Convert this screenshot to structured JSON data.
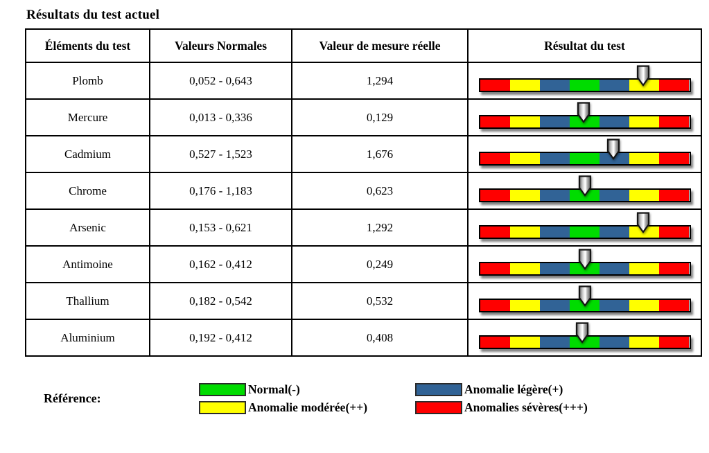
{
  "title": "Résultats du test actuel",
  "table": {
    "headers": [
      "Éléments du test",
      "Valeurs Normales",
      "Valeur de mesure réelle",
      "Résultat du test"
    ],
    "rows": [
      {
        "element": "Plomb",
        "normal_range": "0,052 - 0,643",
        "measured": "1,294",
        "pointer_pct": 77.5
      },
      {
        "element": "Mercure",
        "normal_range": "0,013 - 0,336",
        "measured": "0,129",
        "pointer_pct": 49.5
      },
      {
        "element": "Cadmium",
        "normal_range": "0,527 - 1,523",
        "measured": "1,676",
        "pointer_pct": 63.5
      },
      {
        "element": "Chrome",
        "normal_range": "0,176 - 1,183",
        "measured": "0,623",
        "pointer_pct": 50
      },
      {
        "element": "Arsenic",
        "normal_range": "0,153 - 0,621",
        "measured": "1,292",
        "pointer_pct": 77.5
      },
      {
        "element": "Antimoine",
        "normal_range": "0,162 - 0,412",
        "measured": "0,249",
        "pointer_pct": 50
      },
      {
        "element": "Thallium",
        "normal_range": "0,182 - 0,542",
        "measured": "0,532",
        "pointer_pct": 50
      },
      {
        "element": "Aluminium",
        "normal_range": "0,192 - 0,412",
        "measured": "0,408",
        "pointer_pct": 49
      }
    ]
  },
  "result_bar": {
    "segments": [
      "severe",
      "moderate",
      "slight",
      "normal",
      "slight",
      "moderate",
      "severe"
    ],
    "pointer_icon": "down-arrow-pointer"
  },
  "legend": {
    "label": "Référence:",
    "items": [
      {
        "key": "normal",
        "label": "Normal(-)"
      },
      {
        "key": "slight",
        "label": "Anomalie légère(+)"
      },
      {
        "key": "moderate",
        "label": "Anomalie modérée(++)"
      },
      {
        "key": "severe",
        "label": "Anomalies sévères(+++)"
      }
    ]
  },
  "colors": {
    "normal": "#00dc00",
    "slight": "#316396",
    "moderate": "#ffff00",
    "severe": "#ff0000"
  }
}
